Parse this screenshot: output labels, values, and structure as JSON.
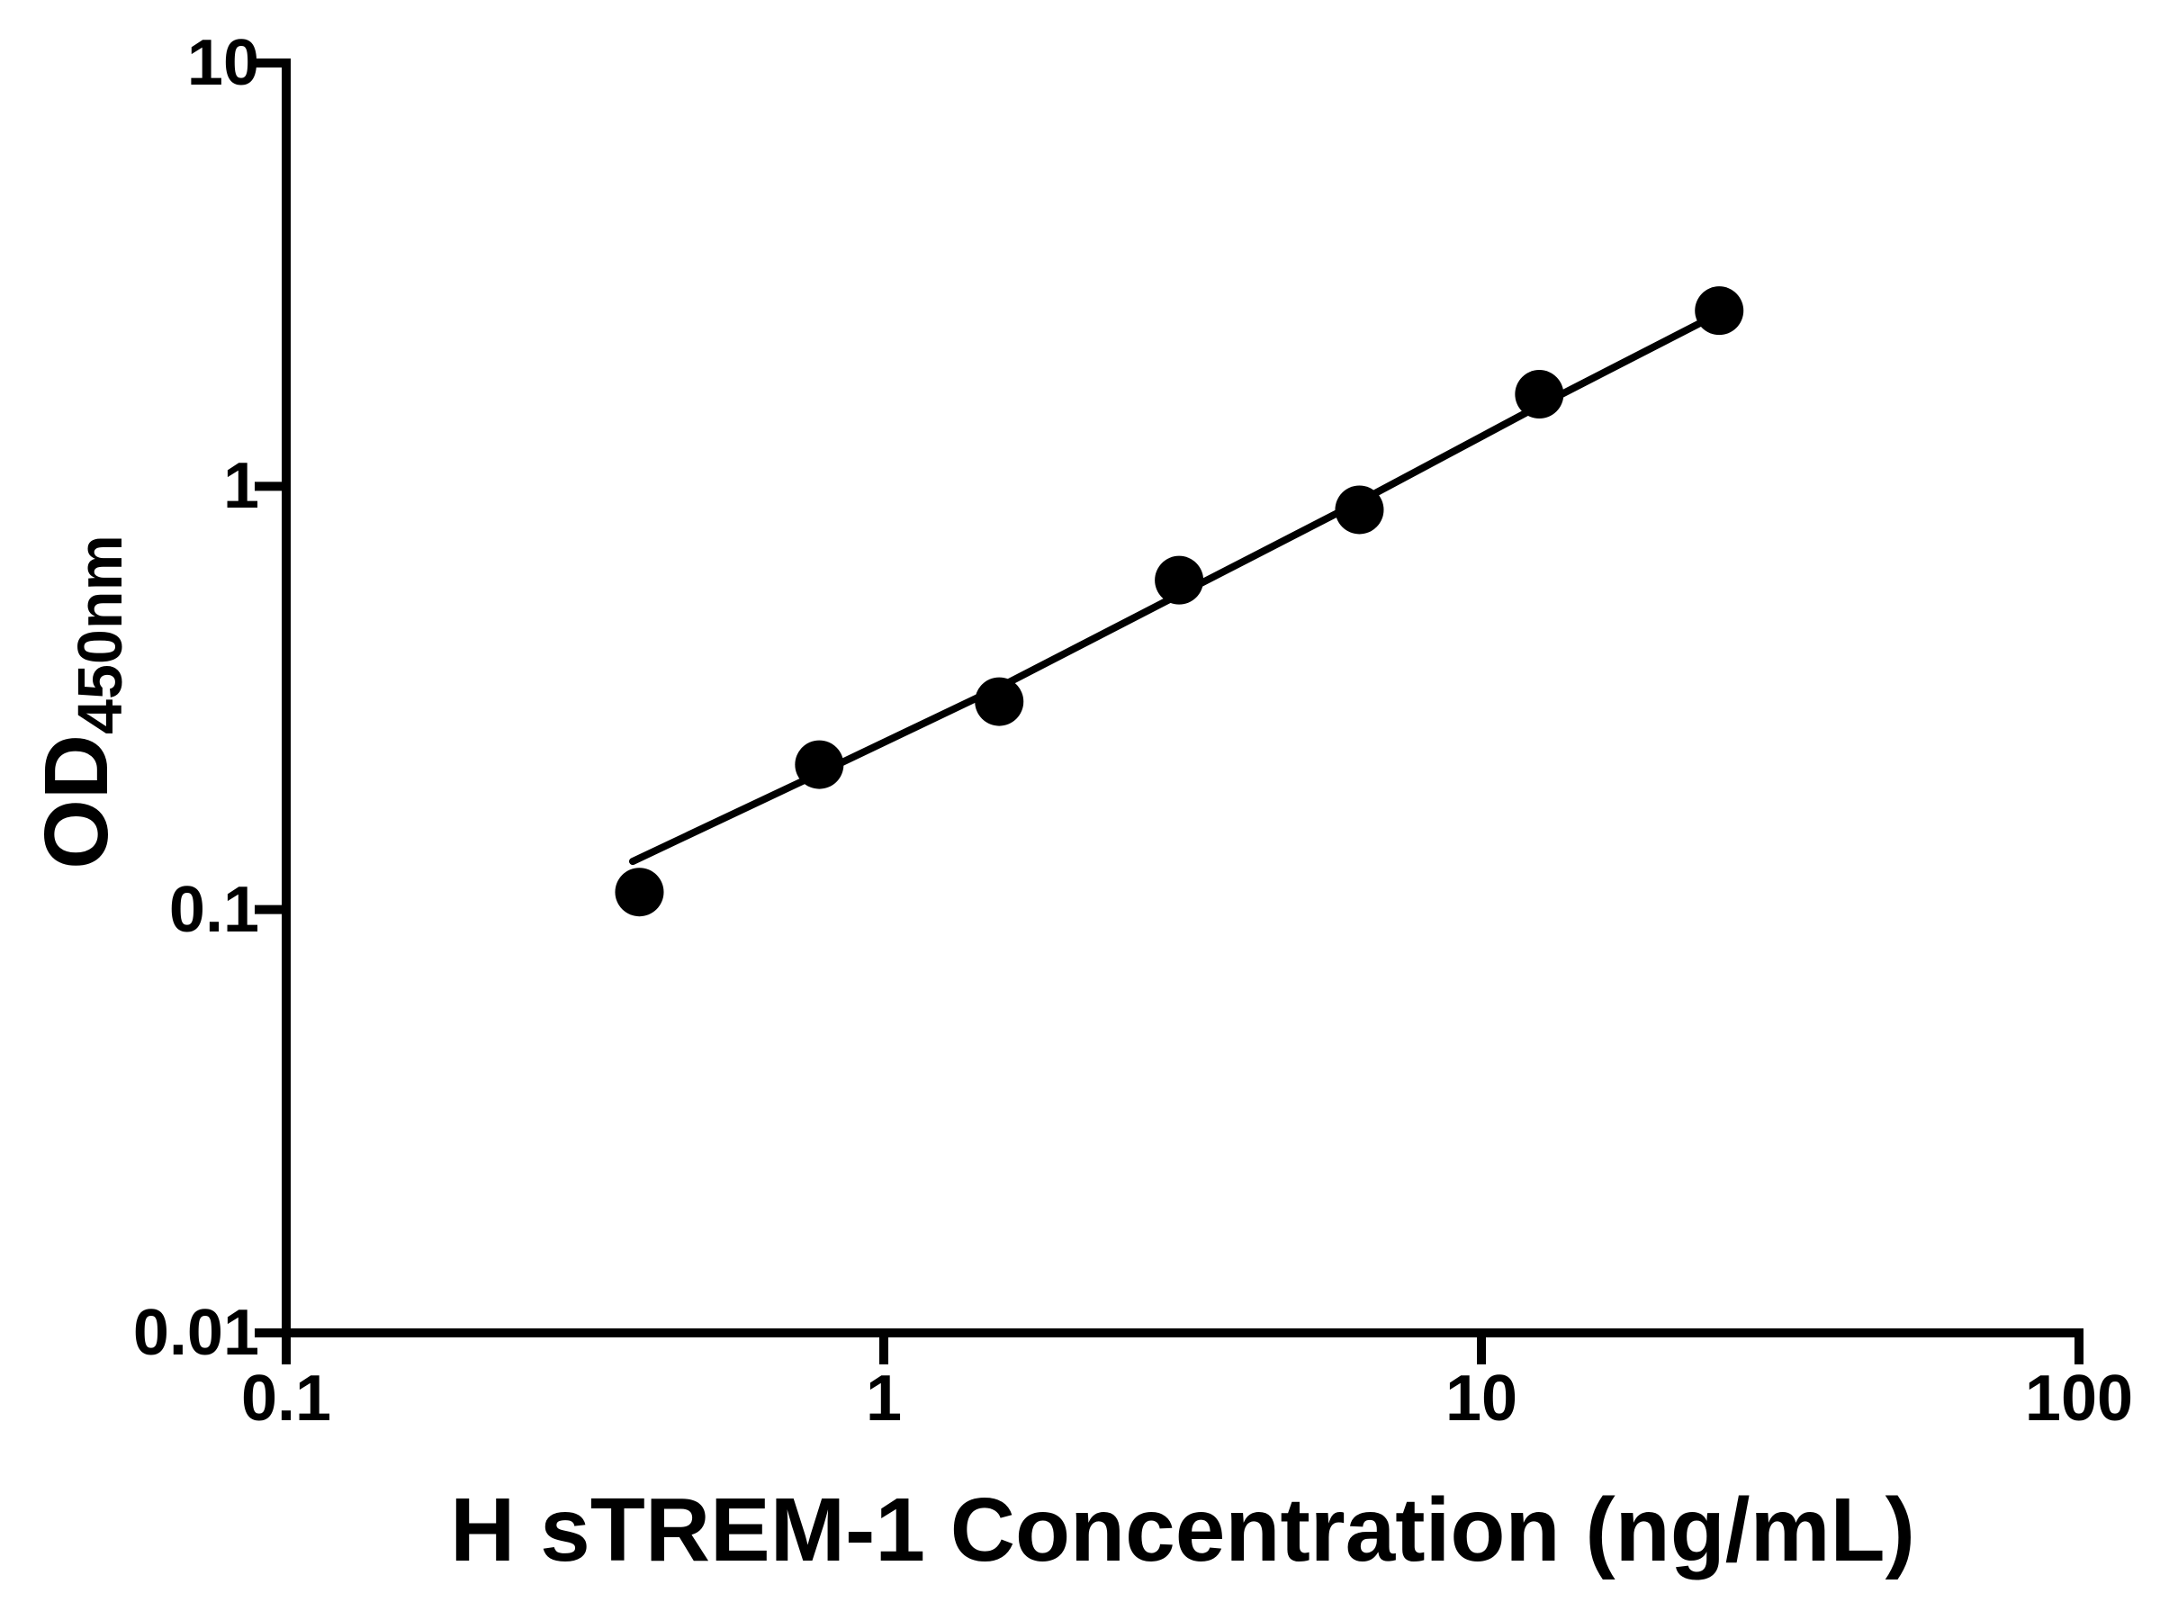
{
  "chart_data": {
    "type": "scatter",
    "title": "",
    "xlabel": "H sTREM-1 Concentration (ng/mL)",
    "ylabel": "OD450nm",
    "ylabel_main": "OD",
    "ylabel_sub": "450nm",
    "x_scale": "log",
    "y_scale": "log",
    "xlim": [
      0.1,
      100
    ],
    "ylim": [
      0.01,
      10
    ],
    "grid": false,
    "legend": false,
    "x_ticks": [
      0.1,
      1,
      10,
      100
    ],
    "x_tick_labels": [
      "0.1",
      "1",
      "10",
      "100"
    ],
    "y_ticks": [
      10,
      1,
      0.1,
      0.01
    ],
    "y_tick_labels": [
      "10",
      "1",
      "0.1",
      "0.01"
    ],
    "axis_color": "#000000",
    "marker_color": "#000000",
    "line_color": "#000000",
    "background_color": "#ffffff",
    "points": [
      [
        0.39,
        0.11
      ],
      [
        0.78,
        0.22
      ],
      [
        1.56,
        0.31
      ],
      [
        3.12,
        0.6
      ],
      [
        6.25,
        0.88
      ],
      [
        12.5,
        1.65
      ],
      [
        25,
        2.6
      ]
    ],
    "fit_line": [
      [
        0.38,
        0.13
      ],
      [
        0.78,
        0.21
      ],
      [
        1.56,
        0.335
      ],
      [
        3.12,
        0.555
      ],
      [
        6.25,
        0.92
      ],
      [
        12.5,
        1.55
      ],
      [
        25.5,
        2.6
      ]
    ]
  }
}
